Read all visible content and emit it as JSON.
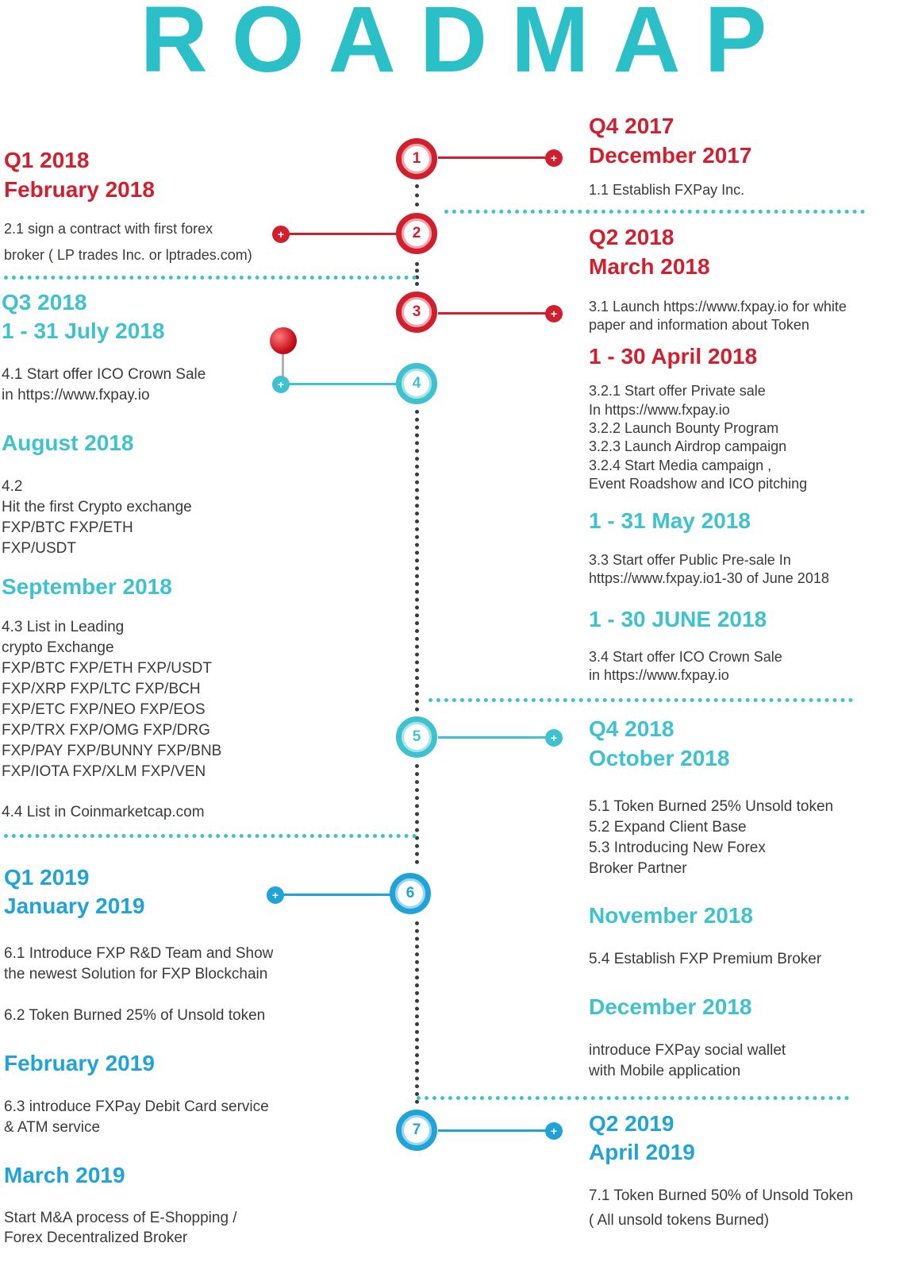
{
  "title": "ROADMAP",
  "colors": {
    "red": "#d11f2e",
    "teal": "#3ec2cf",
    "blue": "#1fa3d9"
  },
  "milestones": [
    "1",
    "2",
    "3",
    "4",
    "5",
    "6",
    "7"
  ],
  "q4_2017": {
    "quarter": "Q4 2017",
    "month": "December 2017",
    "items": [
      "1.1  Establish FXPay Inc."
    ]
  },
  "q1_2018": {
    "quarter": "Q1 2018",
    "month": "February 2018",
    "items": [
      "2.1  sign a contract with first forex",
      "broker ( LP trades Inc. or lptrades.com)"
    ]
  },
  "q2_2018": {
    "quarter": "Q2 2018",
    "month": "March 2018",
    "march_items": [
      "3.1 Launch https://www.fxpay.io for white",
      "paper and information about Token"
    ],
    "april": "1 - 30 April 2018",
    "april_items": [
      "3.2.1 Start offer Private sale",
      "In https://www.fxpay.io",
      "3.2.2 Launch Bounty Program",
      "3.2.3 Launch Airdrop campaign",
      "3.2.4  Start  Media campaign ,",
      "Event Roadshow and ICO pitching"
    ],
    "may": "1 - 31 May 2018",
    "may_items": [
      "3.3 Start offer Public Pre-sale In",
      "https://www.fxpay.io1-30 of June 2018"
    ],
    "june": "1 - 30 JUNE 2018",
    "june_items": [
      "3.4 Start offer ICO  Crown Sale",
      "in https://www.fxpay.io"
    ]
  },
  "q3_2018": {
    "quarter": "Q3 2018",
    "month": "1 - 31 July 2018",
    "july_items": [
      "4.1 Start offer ICO  Crown Sale",
      "in https://www.fxpay.io"
    ],
    "august": "August 2018",
    "august_items": [
      "4.2",
      "Hit the first Crypto exchange",
      "FXP/BTC  FXP/ETH",
      "FXP/USDT"
    ],
    "september": "September 2018",
    "september_items": [
      "4.3  List in Leading",
      "crypto Exchange",
      "FXP/BTC  FXP/ETH  FXP/USDT",
      "FXP/XRP FXP/LTC FXP/BCH",
      "FXP/ETC  FXP/NEO   FXP/EOS",
      "FXP/TRX FXP/OMG  FXP/DRG",
      "FXP/PAY FXP/BUNNY FXP/BNB",
      "FXP/IOTA FXP/XLM  FXP/VEN"
    ],
    "coinmarketcap": "4.4  List in Coinmarketcap.com"
  },
  "q4_2018": {
    "quarter": "Q4 2018",
    "month": "October 2018",
    "october_items": [
      "5.1 Token Burned 25% Unsold token",
      "5.2 Expand Client Base",
      "5.3 Introducing  New Forex",
      "Broker Partner"
    ],
    "november": "November 2018",
    "november_items": [
      "5.4 Establish FXP Premium Broker"
    ],
    "december": "December 2018",
    "december_items": [
      "introduce FXPay social wallet",
      "with Mobile application"
    ]
  },
  "q1_2019": {
    "quarter": "Q1 2019",
    "month": "January 2019",
    "january_items": [
      "6.1 Introduce FXP R&D Team and Show",
      "the newest Solution for FXP Blockchain"
    ],
    "january_item_2": "6.2 Token Burned 25% of  Unsold token",
    "february": "February 2019",
    "february_items": [
      "6.3 introduce FXPay Debit Card service",
      "& ATM service"
    ],
    "march": "March  2019",
    "march_items": [
      "Start M&A process of E-Shopping /",
      "Forex Decentralized Broker"
    ]
  },
  "q2_2019": {
    "quarter": "Q2 2019",
    "month": "April 2019",
    "items": [
      "7.1 Token Burned 50% of Unsold Token",
      "( All unsold tokens Burned)"
    ]
  }
}
